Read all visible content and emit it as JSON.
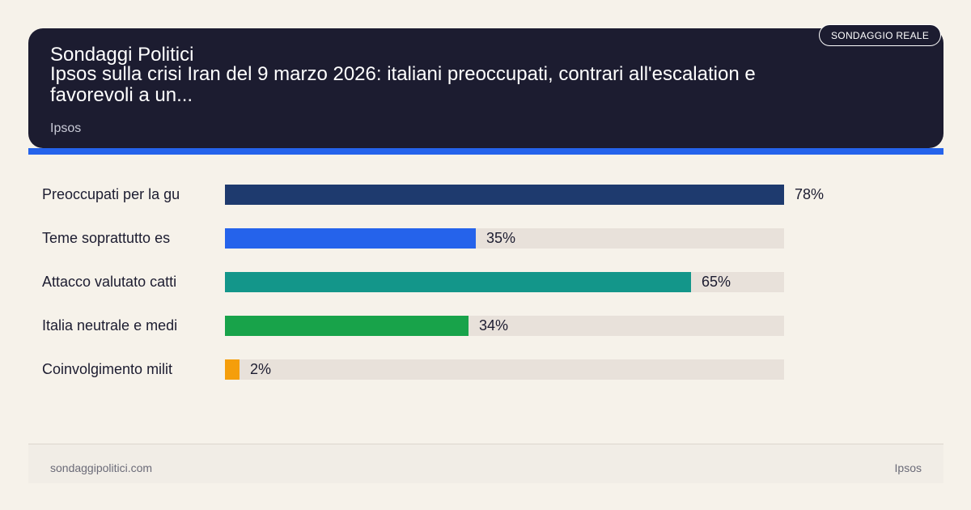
{
  "header": {
    "site_name": "Sondaggi Politici",
    "headline": "Ipsos sulla crisi Iran del 9 marzo 2026: italiani preoccupati, contrari all'escalation e favorevoli a un...",
    "source": "Ipsos",
    "badge": "SONDAGGIO REALE"
  },
  "footer": {
    "site": "sondaggipolitici.com",
    "source": "Ipsos"
  },
  "colors": {
    "header_bg": "#1c1c30",
    "accent": "#2563eb",
    "track": "#e8e1da"
  },
  "chart_data": {
    "type": "bar",
    "orientation": "horizontal",
    "categories": [
      "Preoccupati per la gu",
      "Teme soprattutto es",
      "Attacco valutato catti",
      "Italia neutrale e medi",
      "Coinvolgimento milit"
    ],
    "values": [
      78,
      35,
      65,
      34,
      2
    ],
    "value_labels": [
      "78%",
      "35%",
      "65%",
      "34%",
      "2%"
    ],
    "bar_colors": [
      "#1e3a6e",
      "#2563eb",
      "#13968a",
      "#18a34a",
      "#f59e0b"
    ],
    "xlim": [
      0,
      78
    ],
    "grid": false,
    "legend": "none"
  }
}
